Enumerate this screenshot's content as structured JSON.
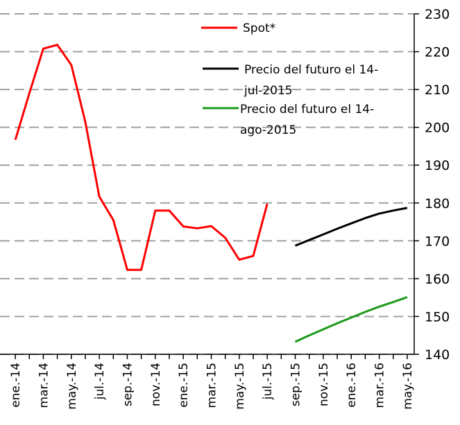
{
  "chart_data": {
    "type": "line",
    "categories": [
      "ene.-14",
      null,
      "mar.-14",
      null,
      "may.-14",
      null,
      "jul.-14",
      null,
      "sep.-14",
      null,
      "nov.-14",
      null,
      "ene.-15",
      null,
      "mar.-15",
      null,
      "may.-15",
      null,
      "jul.-15",
      null,
      "sep.-15",
      null,
      "nov.-15",
      null,
      "ene.-16",
      null,
      "mar.-16",
      null,
      "may.-16"
    ],
    "series": [
      {
        "name": "Spot*",
        "color": "#ff0000",
        "values": [
          196.7,
          209,
          220.8,
          221.8,
          216.5,
          201.5,
          181.7,
          175.5,
          162.3,
          162.3,
          178,
          178,
          173.8,
          173.3,
          173.9,
          170.8,
          165,
          166,
          179.8,
          null,
          null,
          null,
          null,
          null,
          null,
          null,
          null,
          null,
          null
        ]
      },
      {
        "name": "Precio del futuro el 14-jul-2015",
        "color": "#000000",
        "values": [
          null,
          null,
          null,
          null,
          null,
          null,
          null,
          null,
          null,
          null,
          null,
          null,
          null,
          null,
          null,
          null,
          null,
          null,
          null,
          null,
          168.7,
          170.2,
          171.7,
          173.2,
          174.6,
          176,
          177.2,
          178,
          178.7
        ]
      },
      {
        "name": "Precio del futuro el 14-ago-2015",
        "color": "#1a9a1a",
        "values": [
          null,
          null,
          null,
          null,
          null,
          null,
          null,
          null,
          null,
          null,
          null,
          null,
          null,
          null,
          null,
          null,
          null,
          null,
          null,
          null,
          143.3,
          145,
          146.6,
          148.2,
          149.7,
          151.2,
          152.6,
          153.8,
          155.1
        ]
      }
    ],
    "ylim": [
      140,
      230
    ],
    "yticks": [
      140,
      150,
      160,
      170,
      180,
      190,
      200,
      210,
      220,
      230
    ],
    "grid": true
  }
}
